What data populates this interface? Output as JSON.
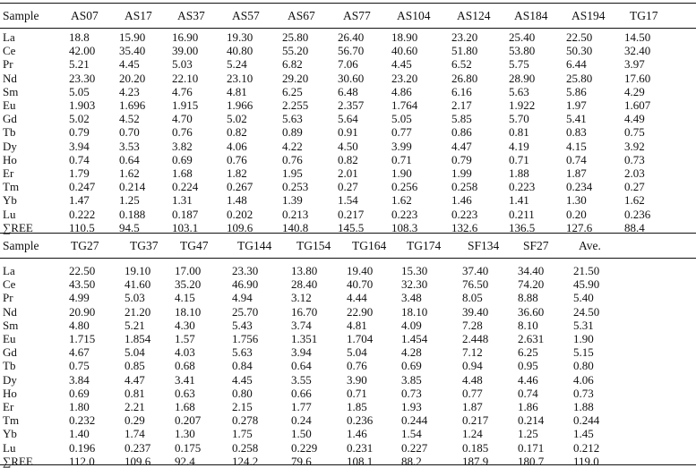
{
  "table": {
    "block1": {
      "header": [
        "Sample",
        "AS07",
        "AS17",
        "AS37",
        "AS57",
        "AS67",
        "AS77",
        "AS104",
        "AS124",
        "AS184",
        "AS194",
        "TG17"
      ],
      "rows": [
        [
          "La",
          "18.8",
          "15.90",
          "16.90",
          "19.30",
          "25.80",
          "26.40",
          "18.90",
          "23.20",
          "25.40",
          "22.50",
          "14.50"
        ],
        [
          "Ce",
          "42.00",
          "35.40",
          "39.00",
          "40.80",
          "55.20",
          "56.70",
          "40.60",
          "51.80",
          "53.80",
          "50.30",
          "32.40"
        ],
        [
          "Pr",
          "5.21",
          "4.45",
          "5.03",
          "5.24",
          "6.82",
          "7.06",
          "4.45",
          "6.52",
          "5.75",
          "6.44",
          "3.97"
        ],
        [
          "Nd",
          "23.30",
          "20.20",
          "22.10",
          "23.10",
          "29.20",
          "30.60",
          "23.20",
          "26.80",
          "28.90",
          "25.80",
          "17.60"
        ],
        [
          "Sm",
          "5.05",
          "4.23",
          "4.76",
          "4.81",
          "6.25",
          "6.48",
          "4.86",
          "6.16",
          "5.63",
          "5.86",
          "4.29"
        ],
        [
          "Eu",
          "1.903",
          "1.696",
          "1.915",
          "1.966",
          "2.255",
          "2.357",
          "1.764",
          "2.17",
          "1.922",
          "1.97",
          "1.607"
        ],
        [
          "Gd",
          "5.02",
          "4.52",
          "4.70",
          "5.02",
          "5.63",
          "5.64",
          "5.05",
          "5.85",
          "5.70",
          "5.41",
          "4.49"
        ],
        [
          "Tb",
          "0.79",
          "0.70",
          "0.76",
          "0.82",
          "0.89",
          "0.91",
          "0.77",
          "0.86",
          "0.81",
          "0.83",
          "0.75"
        ],
        [
          "Dy",
          "3.94",
          "3.53",
          "3.82",
          "4.06",
          "4.22",
          "4.50",
          "3.99",
          "4.47",
          "4.19",
          "4.15",
          "3.92"
        ],
        [
          "Ho",
          "0.74",
          "0.64",
          "0.69",
          "0.76",
          "0.76",
          "0.82",
          "0.71",
          "0.79",
          "0.71",
          "0.74",
          "0.73"
        ],
        [
          "Er",
          "1.79",
          "1.62",
          "1.68",
          "1.82",
          "1.95",
          "2.01",
          "1.90",
          "1.99",
          "1.88",
          "1.87",
          "2.03"
        ],
        [
          "Tm",
          "0.247",
          "0.214",
          "0.224",
          "0.267",
          "0.253",
          "0.27",
          "0.256",
          "0.258",
          "0.223",
          "0.234",
          "0.27"
        ],
        [
          "Yb",
          "1.47",
          "1.25",
          "1.31",
          "1.48",
          "1.39",
          "1.54",
          "1.62",
          "1.46",
          "1.41",
          "1.30",
          "1.62"
        ],
        [
          "Lu",
          "0.222",
          "0.188",
          "0.187",
          "0.202",
          "0.213",
          "0.217",
          "0.223",
          "0.223",
          "0.211",
          "0.20",
          "0.236"
        ],
        [
          "∑REE",
          "110.5",
          "94.5",
          "103.1",
          "109.6",
          "140.8",
          "145.5",
          "108.3",
          "132.6",
          "136.5",
          "127.6",
          "88.4"
        ]
      ]
    },
    "block2": {
      "header": [
        "Sample",
        "TG27",
        "TG37",
        "TG47",
        "TG144",
        "TG154",
        "TG164",
        "TG174",
        "SF134",
        "SF27",
        "Ave."
      ],
      "rows": [
        [
          "La",
          "22.50",
          "19.10",
          "17.00",
          "23.30",
          "13.80",
          "19.40",
          "15.30",
          "37.40",
          "34.40",
          "21.50"
        ],
        [
          "Ce",
          "43.50",
          "41.60",
          "35.20",
          "46.90",
          "28.40",
          "40.70",
          "32.30",
          "76.50",
          "74.20",
          "45.90"
        ],
        [
          "Pr",
          "4.99",
          "5.03",
          "4.15",
          "4.94",
          "3.12",
          "4.44",
          "3.48",
          "8.05",
          "8.88",
          "5.40"
        ],
        [
          "Nd",
          "20.90",
          "21.20",
          "18.10",
          "25.70",
          "16.70",
          "22.90",
          "18.10",
          "39.40",
          "36.60",
          "24.50"
        ],
        [
          "Sm",
          "4.80",
          "5.21",
          "4.30",
          "5.43",
          "3.74",
          "4.81",
          "4.09",
          "7.28",
          "8.10",
          "5.31"
        ],
        [
          "Eu",
          "1.715",
          "1.854",
          "1.57",
          "1.756",
          "1.351",
          "1.704",
          "1.454",
          "2.448",
          "2.631",
          "1.90"
        ],
        [
          "Gd",
          "4.67",
          "5.04",
          "4.03",
          "5.63",
          "3.94",
          "5.04",
          "4.28",
          "7.12",
          "6.25",
          "5.15"
        ],
        [
          "Tb",
          "0.75",
          "0.85",
          "0.68",
          "0.84",
          "0.64",
          "0.76",
          "0.69",
          "0.94",
          "0.95",
          "0.80"
        ],
        [
          "Dy",
          "3.84",
          "4.47",
          "3.41",
          "4.45",
          "3.55",
          "3.90",
          "3.85",
          "4.48",
          "4.46",
          "4.06"
        ],
        [
          "Ho",
          "0.69",
          "0.81",
          "0.63",
          "0.80",
          "0.66",
          "0.71",
          "0.73",
          "0.77",
          "0.74",
          "0.73"
        ],
        [
          "Er",
          "1.80",
          "2.21",
          "1.68",
          "2.15",
          "1.77",
          "1.85",
          "1.93",
          "1.87",
          "1.86",
          "1.88"
        ],
        [
          "Tm",
          "0.232",
          "0.29",
          "0.207",
          "0.278",
          "0.24",
          "0.236",
          "0.244",
          "0.217",
          "0.214",
          "0.244"
        ],
        [
          "Yb",
          "1.40",
          "1.74",
          "1.30",
          "1.75",
          "1.50",
          "1.46",
          "1.54",
          "1.24",
          "1.25",
          "1.45"
        ],
        [
          "Lu",
          "0.196",
          "0.237",
          "0.175",
          "0.258",
          "0.229",
          "0.231",
          "0.227",
          "0.185",
          "0.171",
          "0.212"
        ],
        [
          "∑REE",
          "112.0",
          "109.6",
          "92.4",
          "124.2",
          "79.6",
          "108.1",
          "88.2",
          "187.9",
          "180.7",
          "119.0"
        ]
      ]
    }
  }
}
